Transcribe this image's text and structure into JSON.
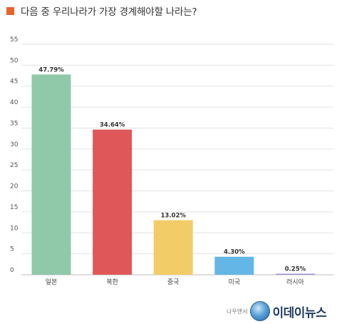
{
  "colors": {
    "marker": "#e8622b",
    "grid": "#e3e3e3",
    "axis": "#bdbdbd"
  },
  "chart_data": {
    "type": "bar",
    "title": "다음 중 우리나라가 가장 경계해야할 나라는?",
    "xlabel": "",
    "ylabel": "",
    "categories": [
      "일본",
      "북한",
      "중국",
      "미국",
      "러시아"
    ],
    "values": [
      47.79,
      34.64,
      13.02,
      4.3,
      0.25
    ],
    "value_labels": [
      "47.79%",
      "34.64%",
      "13.02%",
      "4.30%",
      "0.25%"
    ],
    "bar_colors": [
      "#8fc9a9",
      "#e0575a",
      "#f2cc67",
      "#64b6e6",
      "#9a8fce"
    ],
    "ylim": [
      0,
      55
    ],
    "yticks": [
      0,
      5,
      10,
      15,
      20,
      25,
      30,
      35,
      40,
      45,
      50,
      55
    ],
    "grid": true,
    "legend": "none"
  },
  "watermark": {
    "small_text": "나우앤서",
    "brand": "이데이뉴스"
  }
}
